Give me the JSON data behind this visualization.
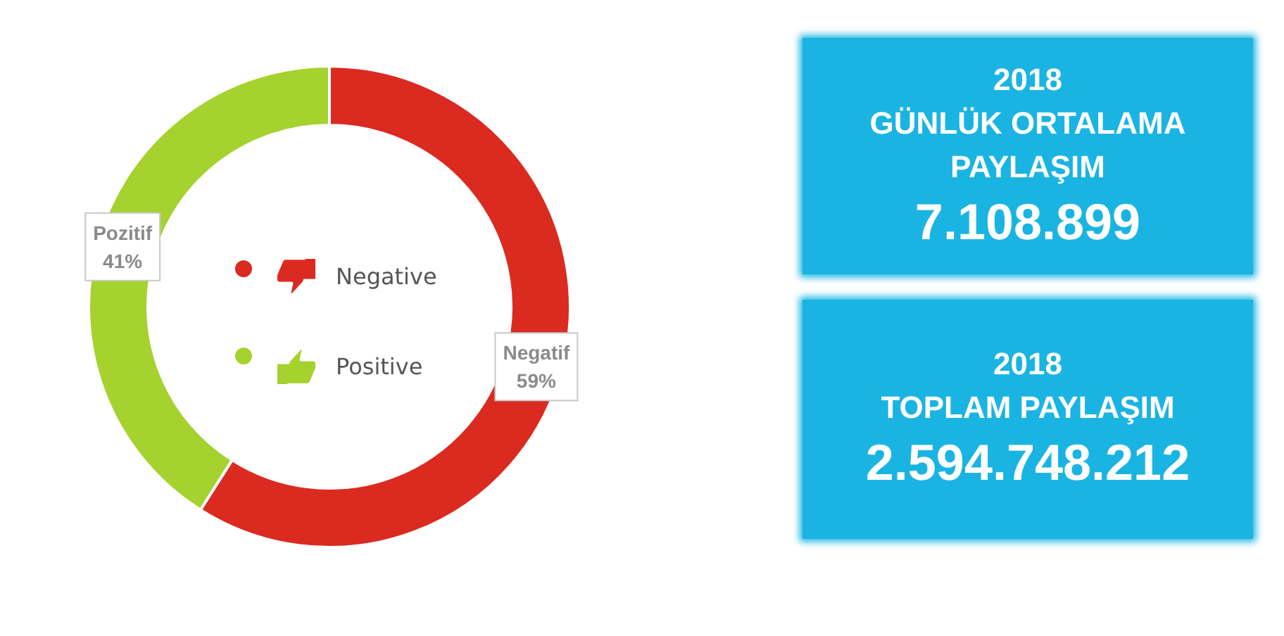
{
  "chart_data": [
    {
      "type": "donut",
      "categories": [
        "Negative",
        "Positive"
      ],
      "values": [
        59,
        41
      ],
      "colors": [
        "#db2a20",
        "#a5d22f"
      ],
      "value_labels": [
        "Negatif\n59%",
        "Pozitif\n41%"
      ],
      "legend": "center"
    },
    {
      "type": "other",
      "title": "2018\nGÜNLÜK ORTALAMA\nPAYLAŞIM",
      "annotations": [
        "7.108.899"
      ],
      "color": "#1ab4e2"
    },
    {
      "type": "other",
      "title": "2018\nTOPLAM PAYLAŞIM",
      "annotations": [
        "2.594.748.212"
      ],
      "color": "#1ab4e2"
    }
  ]
}
